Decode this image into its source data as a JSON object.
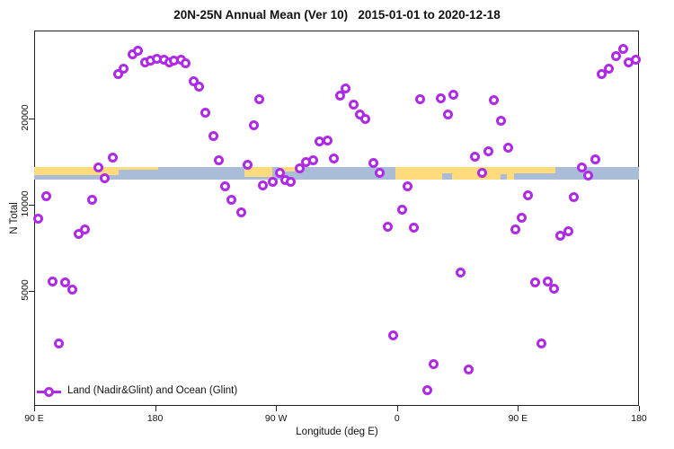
{
  "chart_data": {
    "type": "scatter",
    "title": "20N-25N Annual Mean (Ver 10)   2015-01-01 to 2020-12-18",
    "xlabel": "Longitude (deg E)",
    "ylabel": "N Total",
    "y_scale": "log",
    "x_axis_note": "x axis wraps eastward: 90E -> 180 -> 90W -> 0 -> 90E -> 180 (450 deg span); point x below = degrees east of 90E along the axis",
    "x_ticks": [
      {
        "t": 0,
        "label": "90 E"
      },
      {
        "t": 90,
        "label": "180"
      },
      {
        "t": 180,
        "label": "90 W"
      },
      {
        "t": 270,
        "label": "0"
      },
      {
        "t": 360,
        "label": "90 E"
      },
      {
        "t": 450,
        "label": "180"
      }
    ],
    "y_ticks": [
      {
        "n": 5000,
        "label": "5000"
      },
      {
        "n": 10000,
        "label": "10000"
      },
      {
        "n": 20000,
        "label": "20000"
      }
    ],
    "ylim": [
      2000,
      40000
    ],
    "grid": false,
    "legend": {
      "label": "Land (Nadir&Glint) and Ocean (Glint)",
      "position": "bottom-left-inside"
    },
    "colors": {
      "point": "#AE2AE8",
      "land": "#FFDB7D",
      "ocean": "#A9BDD9",
      "axis": "#222222"
    },
    "map_strip": {
      "description": "world-map latitude band drawn across plot at N ~ 12900 (land yellow / ocean blue)",
      "n_center": 12900,
      "land_segments": [
        {
          "t0": 0,
          "t1": 63,
          "y": 0,
          "h": 0.65
        },
        {
          "t0": 63,
          "t1": 92,
          "y": 0,
          "h": 0.22
        },
        {
          "t0": 156.5,
          "t1": 177,
          "y": 0,
          "h": 0.8
        },
        {
          "t0": 182.5,
          "t1": 197,
          "y": 0,
          "h": 0.35
        },
        {
          "t0": 268.8,
          "t1": 357,
          "y": 0,
          "h": 1.0
        },
        {
          "t0": 357,
          "t1": 388,
          "y": 0,
          "h": 0.5
        }
      ],
      "ocean_notches": [
        {
          "t0": 303.5,
          "t1": 311,
          "y": 0.5,
          "h": 0.5
        },
        {
          "t0": 347,
          "t1": 352,
          "y": 0.6,
          "h": 0.4
        }
      ]
    },
    "series_name": "Land (Nadir&Glint) and Ocean (Glint)",
    "points_format": "[degrees east of 90E along axis, N Total]",
    "points": [
      [
        62.2,
        28500
      ],
      [
        66.2,
        29900
      ],
      [
        72.9,
        33500
      ],
      [
        76.9,
        34500
      ],
      [
        82.9,
        31400
      ],
      [
        86.9,
        31800
      ],
      [
        91.6,
        32300
      ],
      [
        96.3,
        32100
      ],
      [
        100.3,
        31400
      ],
      [
        104.3,
        31800
      ],
      [
        109,
        32100
      ],
      [
        113,
        31200
      ],
      [
        118.4,
        26900
      ],
      [
        122.4,
        25800
      ],
      [
        127.7,
        20900
      ],
      [
        133.1,
        17400
      ],
      [
        137.7,
        14300
      ],
      [
        142.4,
        11600
      ],
      [
        147.1,
        10400
      ],
      [
        153.8,
        9400
      ],
      [
        158.5,
        13800
      ],
      [
        163.2,
        18900
      ],
      [
        167.2,
        23300
      ],
      [
        170.5,
        11700
      ],
      [
        177.2,
        12000
      ],
      [
        183.2,
        12900
      ],
      [
        186.6,
        12200
      ],
      [
        190.6,
        12000
      ],
      [
        197.3,
        13400
      ],
      [
        202.6,
        14100
      ],
      [
        207.3,
        14300
      ],
      [
        212,
        16600
      ],
      [
        218,
        16800
      ],
      [
        222.7,
        14500
      ],
      [
        228,
        24100
      ],
      [
        232,
        25400
      ],
      [
        237.4,
        22400
      ],
      [
        242.7,
        20600
      ],
      [
        246.7,
        19900
      ],
      [
        252.1,
        14000
      ],
      [
        257.4,
        12900
      ],
      [
        262.8,
        8400
      ],
      [
        266.8,
        3500
      ],
      [
        273.5,
        9600
      ],
      [
        277.5,
        11600
      ],
      [
        282.8,
        8300
      ],
      [
        287.5,
        23400
      ],
      [
        292.2,
        2250
      ],
      [
        296.9,
        2770
      ],
      [
        302.3,
        23500
      ],
      [
        307.6,
        20600
      ],
      [
        311.6,
        24200
      ],
      [
        317,
        5800
      ],
      [
        323,
        2660
      ],
      [
        327.7,
        14700
      ],
      [
        333,
        12900
      ],
      [
        337.7,
        15400
      ],
      [
        341.8,
        23200
      ],
      [
        347.1,
        19600
      ],
      [
        352.4,
        15800
      ],
      [
        357.8,
        8200
      ],
      [
        362.5,
        9000
      ],
      [
        367.1,
        10800
      ],
      [
        372.5,
        5340
      ],
      [
        377.2,
        3280
      ],
      [
        381.9,
        5380
      ],
      [
        386.6,
        5100
      ],
      [
        391.3,
        7800
      ],
      [
        397.3,
        8100
      ],
      [
        401.3,
        10600
      ],
      [
        407.3,
        13500
      ],
      [
        411.9,
        12600
      ],
      [
        417.3,
        14400
      ],
      [
        422,
        28500
      ],
      [
        427.3,
        29800
      ],
      [
        432.7,
        33000
      ],
      [
        438,
        35000
      ],
      [
        442,
        31400
      ],
      [
        447.4,
        32100
      ],
      [
        3.3,
        8950
      ],
      [
        8.7,
        10700
      ],
      [
        14,
        5400
      ],
      [
        18.1,
        3280
      ],
      [
        23.4,
        5340
      ],
      [
        28.1,
        5050
      ],
      [
        32.8,
        7900
      ],
      [
        38.1,
        8200
      ],
      [
        42.8,
        10400
      ],
      [
        48.1,
        13500
      ],
      [
        52.8,
        12400
      ],
      [
        58.2,
        14600
      ]
    ]
  }
}
